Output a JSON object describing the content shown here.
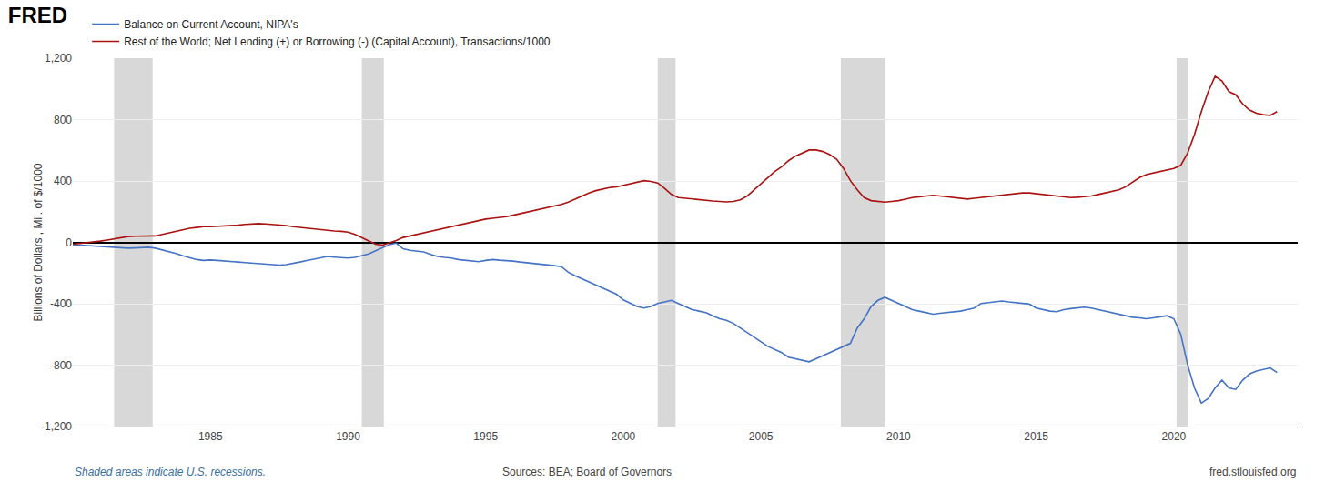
{
  "chart_data": {
    "type": "line",
    "title": "FRED",
    "ylabel": "Billions of Dollars , Mil. of $/1000",
    "annotations": [
      "Shaded areas indicate U.S. recessions.",
      "Sources: BEA; Board of Governors",
      "fred.stlouisfed.org"
    ],
    "recessions": [
      [
        1981.5,
        1982.9
      ],
      [
        1990.5,
        1991.3
      ],
      [
        2001.25,
        2001.9
      ],
      [
        2007.9,
        2009.5
      ],
      [
        2020.1,
        2020.5
      ]
    ],
    "x": [
      1980.0,
      1980.25,
      1980.5,
      1980.75,
      1981.0,
      1981.25,
      1981.5,
      1981.75,
      1982.0,
      1982.25,
      1982.5,
      1982.75,
      1983.0,
      1983.25,
      1983.5,
      1983.75,
      1984.0,
      1984.25,
      1984.5,
      1984.75,
      1985.0,
      1985.25,
      1985.5,
      1985.75,
      1986.0,
      1986.25,
      1986.5,
      1986.75,
      1987.0,
      1987.25,
      1987.5,
      1987.75,
      1988.0,
      1988.25,
      1988.5,
      1988.75,
      1989.0,
      1989.25,
      1989.5,
      1989.75,
      1990.0,
      1990.25,
      1990.5,
      1990.75,
      1991.0,
      1991.25,
      1991.5,
      1991.75,
      1992.0,
      1992.25,
      1992.5,
      1992.75,
      1993.0,
      1993.25,
      1993.5,
      1993.75,
      1994.0,
      1994.25,
      1994.5,
      1994.75,
      1995.0,
      1995.25,
      1995.5,
      1995.75,
      1996.0,
      1996.25,
      1996.5,
      1996.75,
      1997.0,
      1997.25,
      1997.5,
      1997.75,
      1998.0,
      1998.25,
      1998.5,
      1998.75,
      1999.0,
      1999.25,
      1999.5,
      1999.75,
      2000.0,
      2000.25,
      2000.5,
      2000.75,
      2001.0,
      2001.25,
      2001.5,
      2001.75,
      2002.0,
      2002.25,
      2002.5,
      2002.75,
      2003.0,
      2003.25,
      2003.5,
      2003.75,
      2004.0,
      2004.25,
      2004.5,
      2004.75,
      2005.0,
      2005.25,
      2005.5,
      2005.75,
      2006.0,
      2006.25,
      2006.5,
      2006.75,
      2007.0,
      2007.25,
      2007.5,
      2007.75,
      2008.0,
      2008.25,
      2008.5,
      2008.75,
      2009.0,
      2009.25,
      2009.5,
      2009.75,
      2010.0,
      2010.25,
      2010.5,
      2010.75,
      2011.0,
      2011.25,
      2011.5,
      2011.75,
      2012.0,
      2012.25,
      2012.5,
      2012.75,
      2013.0,
      2013.25,
      2013.5,
      2013.75,
      2014.0,
      2014.25,
      2014.5,
      2014.75,
      2015.0,
      2015.25,
      2015.5,
      2015.75,
      2016.0,
      2016.25,
      2016.5,
      2016.75,
      2017.0,
      2017.25,
      2017.5,
      2017.75,
      2018.0,
      2018.25,
      2018.5,
      2018.75,
      2019.0,
      2019.25,
      2019.5,
      2019.75,
      2020.0,
      2020.25,
      2020.5,
      2020.75,
      2021.0,
      2021.25,
      2021.5,
      2021.75,
      2022.0,
      2022.25,
      2022.5,
      2022.75,
      2023.0,
      2023.25,
      2023.5,
      2023.75
    ],
    "series": [
      {
        "name": "Balance on Current Account, NIPA's",
        "color": "#4472c4",
        "values": [
          -15,
          -18,
          -20,
          -22,
          -25,
          -30,
          -32,
          -35,
          -38,
          -36,
          -34,
          -32,
          -38,
          -48,
          -58,
          -72,
          -88,
          -100,
          -112,
          -118,
          -115,
          -118,
          -120,
          -122,
          -128,
          -132,
          -136,
          -138,
          -142,
          -145,
          -148,
          -145,
          -138,
          -128,
          -118,
          -108,
          -98,
          -92,
          -96,
          -98,
          -102,
          -98,
          -88,
          -75,
          -55,
          -35,
          -15,
          -5,
          -42,
          -52,
          -58,
          -62,
          -78,
          -92,
          -98,
          -102,
          -112,
          -118,
          -122,
          -126,
          -118,
          -112,
          -116,
          -118,
          -122,
          -128,
          -132,
          -138,
          -142,
          -148,
          -152,
          -158,
          -195,
          -218,
          -238,
          -258,
          -278,
          -298,
          -318,
          -338,
          -375,
          -398,
          -418,
          -428,
          -418,
          -398,
          -388,
          -378,
          -398,
          -418,
          -438,
          -448,
          -458,
          -478,
          -498,
          -508,
          -528,
          -558,
          -588,
          -618,
          -648,
          -678,
          -698,
          -718,
          -748,
          -758,
          -768,
          -778,
          -758,
          -738,
          -718,
          -698,
          -678,
          -658,
          -558,
          -498,
          -418,
          -378,
          -358,
          -378,
          -398,
          -418,
          -438,
          -448,
          -458,
          -468,
          -462,
          -458,
          -452,
          -448,
          -438,
          -428,
          -398,
          -392,
          -388,
          -382,
          -388,
          -392,
          -398,
          -402,
          -428,
          -438,
          -448,
          -452,
          -438,
          -432,
          -428,
          -422,
          -428,
          -438,
          -448,
          -458,
          -468,
          -478,
          -488,
          -492,
          -498,
          -492,
          -486,
          -478,
          -498,
          -598,
          -798,
          -948,
          -1048,
          -1018,
          -948,
          -898,
          -948,
          -958,
          -898,
          -858,
          -838,
          -828,
          -818,
          -848
        ]
      },
      {
        "name": "Rest of the World; Net Lending (+) or Borrowing (-) (Capital Account), Transactions/1000",
        "color": "#aa1111",
        "values": [
          -12,
          -8,
          -3,
          2,
          8,
          15,
          22,
          32,
          38,
          40,
          42,
          44,
          42,
          52,
          62,
          72,
          82,
          92,
          97,
          102,
          102,
          104,
          107,
          110,
          112,
          117,
          120,
          122,
          120,
          117,
          114,
          110,
          102,
          97,
          92,
          87,
          82,
          77,
          74,
          72,
          67,
          52,
          32,
          12,
          -12,
          -18,
          -3,
          12,
          32,
          42,
          52,
          62,
          72,
          82,
          92,
          102,
          112,
          122,
          132,
          142,
          152,
          157,
          162,
          167,
          177,
          187,
          197,
          207,
          217,
          227,
          237,
          247,
          262,
          282,
          302,
          322,
          337,
          347,
          357,
          362,
          372,
          382,
          392,
          402,
          397,
          387,
          352,
          312,
          292,
          287,
          282,
          277,
          272,
          270,
          267,
          264,
          267,
          277,
          302,
          342,
          382,
          422,
          462,
          492,
          532,
          562,
          582,
          602,
          602,
          592,
          572,
          542,
          482,
          402,
          342,
          292,
          272,
          267,
          262,
          267,
          272,
          282,
          292,
          297,
          302,
          307,
          302,
          297,
          292,
          287,
          282,
          287,
          292,
          297,
          302,
          307,
          312,
          317,
          322,
          322,
          317,
          312,
          307,
          302,
          297,
          292,
          294,
          297,
          302,
          312,
          322,
          332,
          342,
          362,
          392,
          422,
          442,
          452,
          462,
          472,
          482,
          502,
          582,
          702,
          852,
          982,
          1082,
          1052,
          982,
          962,
          902,
          862,
          842,
          832,
          827,
          852
        ]
      }
    ],
    "xlim": [
      1980.0,
      2024.5
    ],
    "xticks": [
      1985,
      1990,
      1995,
      2000,
      2005,
      2010,
      2015,
      2020
    ],
    "ylim": [
      -1200,
      1200
    ],
    "yticks": [
      {
        "value": -1200,
        "label": "-1,200"
      },
      -800,
      -400,
      0,
      400,
      800,
      {
        "value": 1200,
        "label": "1,200"
      }
    ],
    "grid": true
  }
}
